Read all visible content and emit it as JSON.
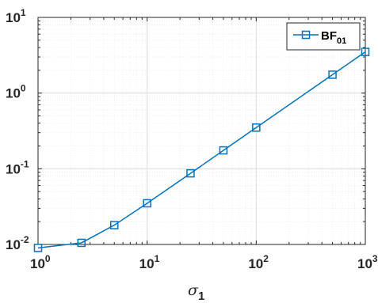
{
  "chart_data": {
    "type": "line",
    "x_scale": "log",
    "y_scale": "log",
    "xlim": [
      1,
      1000
    ],
    "ylim": [
      0.01,
      10
    ],
    "grid": true,
    "minor_grid": true,
    "legend_location": "top-right",
    "x_tick_labels": [
      {
        "base": "10",
        "exp": "0"
      },
      {
        "base": "10",
        "exp": "1"
      },
      {
        "base": "10",
        "exp": "2"
      },
      {
        "base": "10",
        "exp": "3"
      }
    ],
    "y_tick_labels": [
      {
        "base": "10",
        "exp": "-2"
      },
      {
        "base": "10",
        "exp": "-1"
      },
      {
        "base": "10",
        "exp": "0"
      },
      {
        "base": "10",
        "exp": "1"
      }
    ],
    "xlabel": {
      "symbol": "σ",
      "subscript": "1"
    },
    "series": [
      {
        "name": "BF",
        "name_subscript": "01",
        "color": "#0072BD",
        "marker": "square",
        "x": [
          1,
          2.5,
          5,
          10,
          25,
          50,
          100,
          500,
          1000
        ],
        "y": [
          0.009,
          0.0105,
          0.018,
          0.035,
          0.087,
          0.175,
          0.35,
          1.75,
          3.5
        ]
      }
    ]
  }
}
